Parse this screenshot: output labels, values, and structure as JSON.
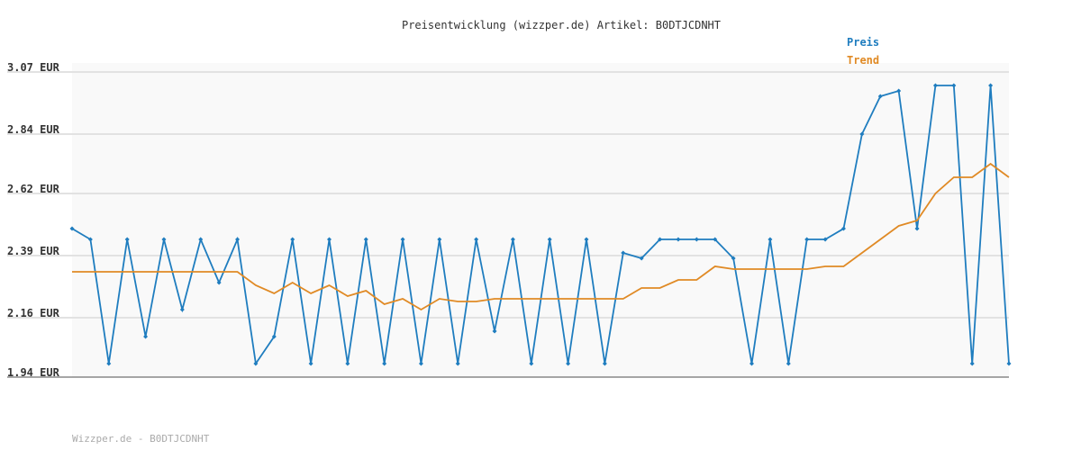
{
  "chart_data": {
    "type": "line",
    "title": "Preisentwicklung (wizzper.de) Artikel: B0DTJCDNHT",
    "footer": "Wizzper.de - B0DTJCDNHT",
    "ylim": [
      1.94,
      3.07
    ],
    "yticks": [
      {
        "value": 1.94,
        "label": "1.94 EUR"
      },
      {
        "value": 2.16,
        "label": "2.16 EUR"
      },
      {
        "value": 2.39,
        "label": "2.39 EUR"
      },
      {
        "value": 2.62,
        "label": "2.62 EUR"
      },
      {
        "value": 2.84,
        "label": "2.84 EUR"
      },
      {
        "value": 3.07,
        "label": "3.07 EUR"
      }
    ],
    "grid": true,
    "legend": "top-right",
    "series": [
      {
        "name": "Preis",
        "color": "#1f7dbf",
        "markers": true,
        "values": [
          2.49,
          2.45,
          1.99,
          2.45,
          2.09,
          2.45,
          2.19,
          2.45,
          2.29,
          2.45,
          1.99,
          2.09,
          2.45,
          1.99,
          2.45,
          1.99,
          2.45,
          1.99,
          2.45,
          1.99,
          2.45,
          1.99,
          2.45,
          2.11,
          2.45,
          1.99,
          2.45,
          1.99,
          2.45,
          1.99,
          2.4,
          2.38,
          2.45,
          2.45,
          2.45,
          2.45,
          2.38,
          1.99,
          2.45,
          1.99,
          2.45,
          2.45,
          2.49,
          2.84,
          2.98,
          3.0,
          2.49,
          3.02,
          3.02,
          1.99,
          3.02,
          1.99
        ]
      },
      {
        "name": "Trend",
        "color": "#e08a25",
        "markers": false,
        "values": [
          2.33,
          2.33,
          2.33,
          2.33,
          2.33,
          2.33,
          2.33,
          2.33,
          2.33,
          2.33,
          2.28,
          2.25,
          2.29,
          2.25,
          2.28,
          2.24,
          2.26,
          2.21,
          2.23,
          2.19,
          2.23,
          2.22,
          2.22,
          2.23,
          2.23,
          2.23,
          2.23,
          2.23,
          2.23,
          2.23,
          2.23,
          2.27,
          2.27,
          2.3,
          2.3,
          2.35,
          2.34,
          2.34,
          2.34,
          2.34,
          2.34,
          2.35,
          2.35,
          2.4,
          2.45,
          2.5,
          2.52,
          2.62,
          2.68,
          2.68,
          2.73,
          2.68
        ]
      }
    ]
  }
}
